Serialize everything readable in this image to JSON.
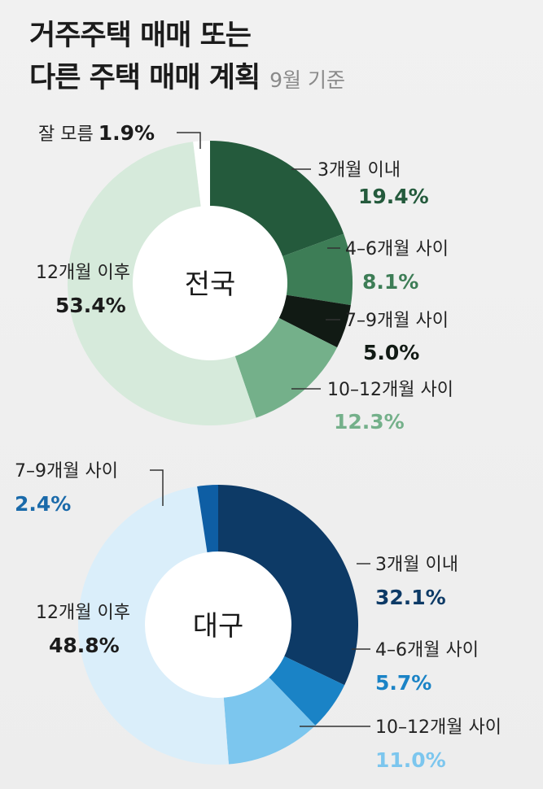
{
  "title": {
    "line1": "거주주택 매매 또는",
    "line2": "다른 주택 매매 계획",
    "subtitle": "9월 기준"
  },
  "chart_data": [
    {
      "type": "pie",
      "name": "전국",
      "donut": true,
      "slices": [
        {
          "label": "3개월 이내",
          "value": 19.4,
          "display": "19.4%",
          "color": "#245a3c"
        },
        {
          "label": "4–6개월 사이",
          "value": 8.1,
          "display": "8.1%",
          "color": "#3d7d56"
        },
        {
          "label": "7–9개월 사이",
          "value": 5.0,
          "display": "5.0%",
          "color": "#111a14"
        },
        {
          "label": "10–12개월 사이",
          "value": 12.3,
          "display": "12.3%",
          "color": "#74b08a"
        },
        {
          "label": "12개월 이후",
          "value": 53.4,
          "display": "53.4%",
          "color": "#d6eadb"
        },
        {
          "label": "잘 모름",
          "value": 1.9,
          "display": "1.9%",
          "color": "#ffffff"
        }
      ]
    },
    {
      "type": "pie",
      "name": "대구",
      "donut": true,
      "slices": [
        {
          "label": "3개월 이내",
          "value": 32.1,
          "display": "32.1%",
          "color": "#0d3a66"
        },
        {
          "label": "4–6개월 사이",
          "value": 5.7,
          "display": "5.7%",
          "color": "#1a83c6"
        },
        {
          "label": "10–12개월 사이",
          "value": 11.0,
          "display": "11.0%",
          "color": "#7cc6ee"
        },
        {
          "label": "12개월 이후",
          "value": 48.8,
          "display": "48.8%",
          "color": "#daeefa"
        },
        {
          "label": "7–9개월 사이",
          "value": 2.4,
          "display": "2.4%",
          "color": "#0e5ea4"
        }
      ]
    }
  ],
  "label_colors": {
    "national": [
      "#245a3c",
      "#3d7d56",
      "#111a14",
      "#74b08a",
      "#1b1b1b",
      "#1b1b1b"
    ],
    "daegu": [
      "#0d3a66",
      "#1a83c6",
      "#7cc6ee",
      "#1b1b1b",
      "#1a6aaa"
    ]
  }
}
